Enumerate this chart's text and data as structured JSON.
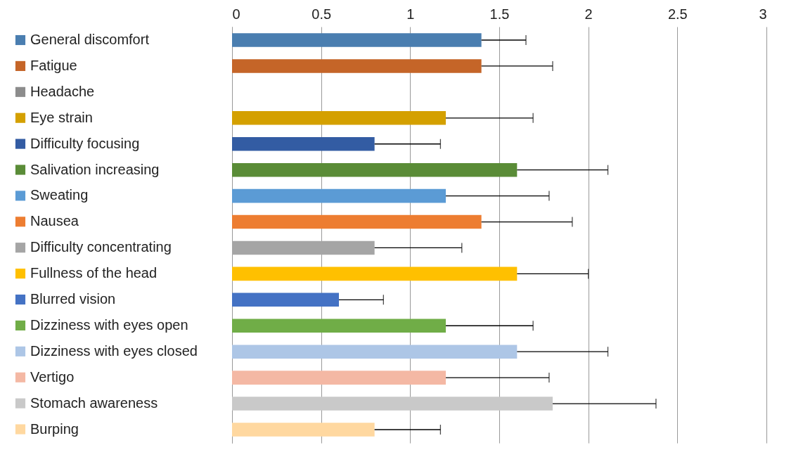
{
  "chart_data": {
    "type": "bar",
    "orientation": "horizontal",
    "categories": [
      null
    ],
    "series": [
      {
        "name": "General discomfort",
        "color": "#4a7eb0",
        "values": [
          1.4
        ],
        "errors": [
          [
            1.4,
            1.65
          ]
        ]
      },
      {
        "name": "Fatigue",
        "color": "#c56528",
        "values": [
          1.4
        ],
        "errors": [
          [
            1.4,
            1.8
          ]
        ]
      },
      {
        "name": "Headache",
        "color": "#8c8c8c",
        "values": [
          null
        ],
        "errors": [
          null
        ]
      },
      {
        "name": "Eye strain",
        "color": "#d4a000",
        "values": [
          1.2
        ],
        "errors": [
          [
            1.2,
            1.69
          ]
        ]
      },
      {
        "name": "Difficulty focusing",
        "color": "#335ca3",
        "values": [
          0.8
        ],
        "errors": [
          [
            0.8,
            1.17
          ]
        ]
      },
      {
        "name": "Salivation increasing",
        "color": "#5a8c37",
        "values": [
          1.6
        ],
        "errors": [
          [
            1.6,
            2.11
          ]
        ]
      },
      {
        "name": "Sweating",
        "color": "#5b9bd5",
        "values": [
          1.2
        ],
        "errors": [
          [
            1.2,
            1.78
          ]
        ]
      },
      {
        "name": "Nausea",
        "color": "#ed7d31",
        "values": [
          1.4
        ],
        "errors": [
          [
            1.4,
            1.91
          ]
        ]
      },
      {
        "name": "Difficulty concentrating",
        "color": "#a5a5a5",
        "values": [
          0.8
        ],
        "errors": [
          [
            0.8,
            1.29
          ]
        ]
      },
      {
        "name": "Fullness of the head",
        "color": "#ffc000",
        "values": [
          1.6
        ],
        "errors": [
          [
            1.6,
            2.0
          ]
        ]
      },
      {
        "name": "Blurred vision",
        "color": "#4472c4",
        "values": [
          0.6
        ],
        "errors": [
          [
            0.6,
            0.85
          ]
        ]
      },
      {
        "name": "Dizziness with eyes open",
        "color": "#70ad47",
        "values": [
          1.2
        ],
        "errors": [
          [
            1.2,
            1.69
          ]
        ]
      },
      {
        "name": "Dizziness with eyes closed",
        "color": "#adc6e6",
        "values": [
          1.6
        ],
        "errors": [
          [
            1.6,
            2.11
          ]
        ]
      },
      {
        "name": "Vertigo",
        "color": "#f4b8a4",
        "values": [
          1.2
        ],
        "errors": [
          [
            1.2,
            1.78
          ]
        ]
      },
      {
        "name": "Stomach awareness",
        "color": "#c9c9c9",
        "values": [
          1.8
        ],
        "errors": [
          [
            1.8,
            2.38
          ]
        ]
      },
      {
        "name": "Burping",
        "color": "#ffd8a0",
        "values": [
          0.8
        ],
        "errors": [
          [
            0.8,
            1.17
          ]
        ]
      }
    ],
    "xlim": [
      0,
      3
    ],
    "xticks": [
      0,
      0.5,
      1,
      1.5,
      2,
      2.5,
      3
    ],
    "grid": "x",
    "legend": "left",
    "tick_labels": "x"
  }
}
